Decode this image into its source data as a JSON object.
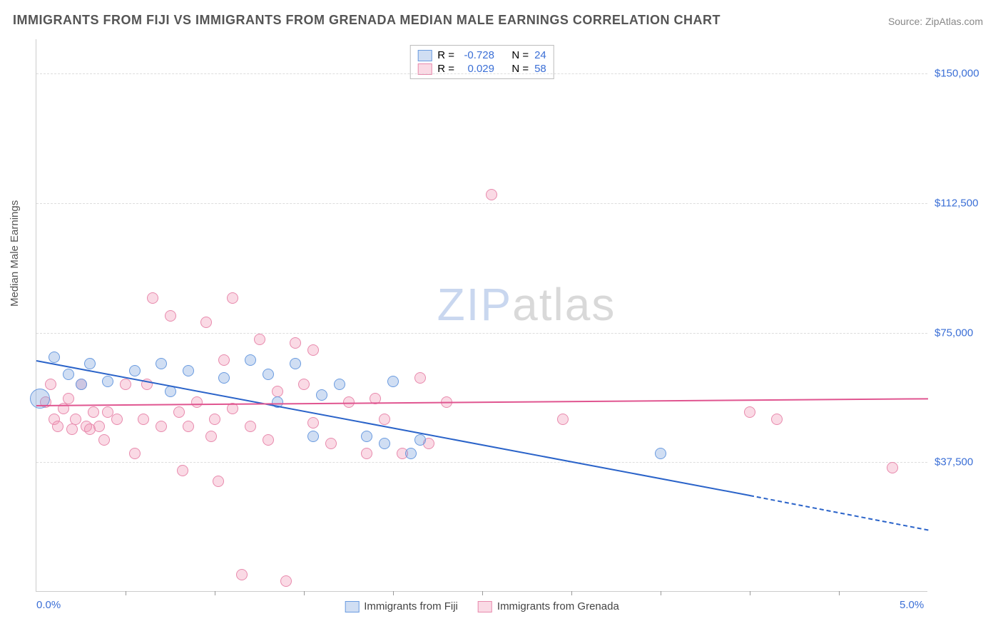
{
  "title": "IMMIGRANTS FROM FIJI VS IMMIGRANTS FROM GRENADA MEDIAN MALE EARNINGS CORRELATION CHART",
  "source": "Source: ZipAtlas.com",
  "ylabel": "Median Male Earnings",
  "watermark": {
    "part1": "ZIP",
    "part2": "atlas",
    "color1": "#c9d7ef",
    "color2": "#d9d9d9"
  },
  "chart": {
    "type": "scatter",
    "background_color": "#ffffff",
    "grid_color": "#dddddd",
    "axis_color": "#cccccc",
    "xlim": [
      0,
      5.0
    ],
    "ylim": [
      0,
      160000
    ],
    "x_ticks": [
      0.5,
      1.0,
      1.5,
      2.0,
      2.5,
      3.0,
      3.5,
      4.0,
      4.5
    ],
    "x_labels": [
      {
        "v": 0.0,
        "t": "0.0%"
      },
      {
        "v": 5.0,
        "t": "5.0%"
      }
    ],
    "y_gridlines": [
      {
        "v": 37500,
        "t": "$37,500"
      },
      {
        "v": 75000,
        "t": "$75,000"
      },
      {
        "v": 112500,
        "t": "$112,500"
      },
      {
        "v": 150000,
        "t": "$150,000"
      }
    ],
    "series": [
      {
        "name": "Immigrants from Fiji",
        "fill": "rgba(120,160,220,0.35)",
        "stroke": "#6a9be0",
        "line_color": "#2a63c9",
        "r_label": "R =",
        "r": "-0.728",
        "n_label": "N =",
        "n": "24",
        "trend": {
          "x1": 0.0,
          "y1": 67000,
          "x2": 4.0,
          "y2": 28000,
          "dash_to_x": 5.0,
          "dash_to_y": 18000
        },
        "marker_r": 8,
        "points": [
          {
            "x": 0.02,
            "y": 56000,
            "r": 14
          },
          {
            "x": 0.1,
            "y": 68000
          },
          {
            "x": 0.18,
            "y": 63000
          },
          {
            "x": 0.3,
            "y": 66000
          },
          {
            "x": 0.25,
            "y": 60000
          },
          {
            "x": 0.4,
            "y": 61000
          },
          {
            "x": 0.55,
            "y": 64000
          },
          {
            "x": 0.7,
            "y": 66000
          },
          {
            "x": 0.75,
            "y": 58000
          },
          {
            "x": 0.85,
            "y": 64000
          },
          {
            "x": 1.05,
            "y": 62000
          },
          {
            "x": 1.2,
            "y": 67000
          },
          {
            "x": 1.3,
            "y": 63000
          },
          {
            "x": 1.35,
            "y": 55000
          },
          {
            "x": 1.45,
            "y": 66000
          },
          {
            "x": 1.55,
            "y": 45000
          },
          {
            "x": 1.6,
            "y": 57000
          },
          {
            "x": 1.7,
            "y": 60000
          },
          {
            "x": 1.85,
            "y": 45000
          },
          {
            "x": 1.95,
            "y": 43000
          },
          {
            "x": 2.0,
            "y": 61000
          },
          {
            "x": 2.1,
            "y": 40000
          },
          {
            "x": 2.15,
            "y": 44000
          },
          {
            "x": 3.5,
            "y": 40000
          }
        ]
      },
      {
        "name": "Immigrants from Grenada",
        "fill": "rgba(240,150,180,0.35)",
        "stroke": "#e88aad",
        "line_color": "#e05590",
        "r_label": "R =",
        "r": "0.029",
        "n_label": "N =",
        "n": "58",
        "trend": {
          "x1": 0.0,
          "y1": 54000,
          "x2": 5.0,
          "y2": 56000
        },
        "marker_r": 8,
        "points": [
          {
            "x": 0.05,
            "y": 55000
          },
          {
            "x": 0.08,
            "y": 60000
          },
          {
            "x": 0.1,
            "y": 50000
          },
          {
            "x": 0.12,
            "y": 48000
          },
          {
            "x": 0.15,
            "y": 53000
          },
          {
            "x": 0.18,
            "y": 56000
          },
          {
            "x": 0.2,
            "y": 47000
          },
          {
            "x": 0.22,
            "y": 50000
          },
          {
            "x": 0.25,
            "y": 60000
          },
          {
            "x": 0.28,
            "y": 48000
          },
          {
            "x": 0.3,
            "y": 47000
          },
          {
            "x": 0.32,
            "y": 52000
          },
          {
            "x": 0.35,
            "y": 48000
          },
          {
            "x": 0.38,
            "y": 44000
          },
          {
            "x": 0.4,
            "y": 52000
          },
          {
            "x": 0.45,
            "y": 50000
          },
          {
            "x": 0.5,
            "y": 60000
          },
          {
            "x": 0.55,
            "y": 40000
          },
          {
            "x": 0.6,
            "y": 50000
          },
          {
            "x": 0.62,
            "y": 60000
          },
          {
            "x": 0.65,
            "y": 85000
          },
          {
            "x": 0.7,
            "y": 48000
          },
          {
            "x": 0.75,
            "y": 80000
          },
          {
            "x": 0.8,
            "y": 52000
          },
          {
            "x": 0.82,
            "y": 35000
          },
          {
            "x": 0.85,
            "y": 48000
          },
          {
            "x": 0.9,
            "y": 55000
          },
          {
            "x": 0.95,
            "y": 78000
          },
          {
            "x": 0.98,
            "y": 45000
          },
          {
            "x": 1.0,
            "y": 50000
          },
          {
            "x": 1.02,
            "y": 32000
          },
          {
            "x": 1.05,
            "y": 67000
          },
          {
            "x": 1.1,
            "y": 53000
          },
          {
            "x": 1.1,
            "y": 85000
          },
          {
            "x": 1.15,
            "y": 5000
          },
          {
            "x": 1.2,
            "y": 48000
          },
          {
            "x": 1.25,
            "y": 73000
          },
          {
            "x": 1.3,
            "y": 44000
          },
          {
            "x": 1.35,
            "y": 58000
          },
          {
            "x": 1.4,
            "y": 3000
          },
          {
            "x": 1.45,
            "y": 72000
          },
          {
            "x": 1.5,
            "y": 60000
          },
          {
            "x": 1.55,
            "y": 70000
          },
          {
            "x": 1.55,
            "y": 49000
          },
          {
            "x": 1.65,
            "y": 43000
          },
          {
            "x": 1.75,
            "y": 55000
          },
          {
            "x": 1.85,
            "y": 40000
          },
          {
            "x": 1.9,
            "y": 56000
          },
          {
            "x": 1.95,
            "y": 50000
          },
          {
            "x": 2.05,
            "y": 40000
          },
          {
            "x": 2.15,
            "y": 62000
          },
          {
            "x": 2.2,
            "y": 43000
          },
          {
            "x": 2.3,
            "y": 55000
          },
          {
            "x": 2.55,
            "y": 115000
          },
          {
            "x": 2.95,
            "y": 50000
          },
          {
            "x": 4.0,
            "y": 52000
          },
          {
            "x": 4.15,
            "y": 50000
          },
          {
            "x": 4.8,
            "y": 36000
          }
        ]
      }
    ]
  }
}
